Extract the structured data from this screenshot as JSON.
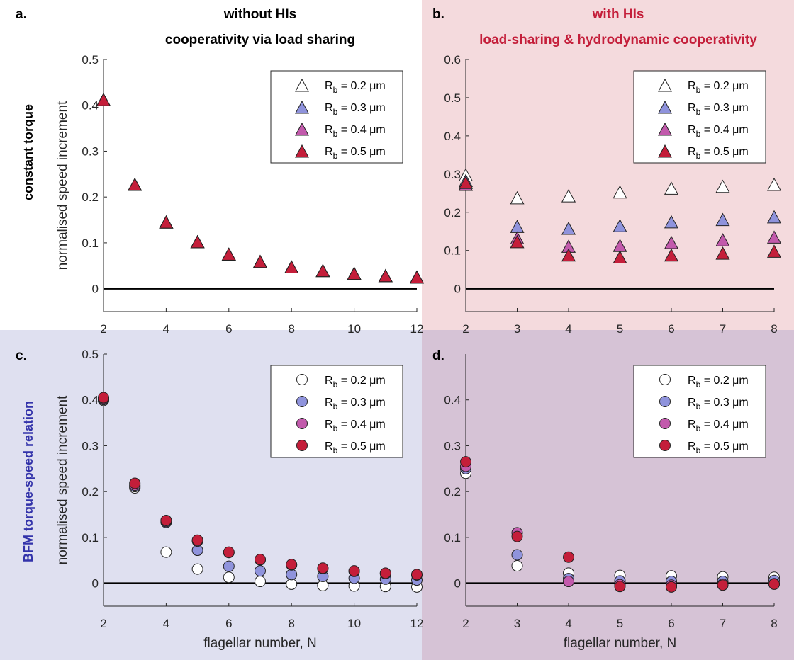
{
  "colors": {
    "bg_b": "#f4dadd",
    "bg_c": "#dfe0f0",
    "bg_d": "#d6c3d6",
    "series": [
      "#ffffff",
      "#8f93dc",
      "#c25aac",
      "#c41e3a"
    ],
    "title_red": "#c41e3a",
    "label_blue": "#3333aa"
  },
  "headers": {
    "col1_line1": "without HIs",
    "col1_line2": "cooperativity via load sharing",
    "col2_line1": "with HIs",
    "col2_line2": "load-sharing & hydrodynamic cooperativity",
    "row1": "constant torque",
    "row2": "BFM torque-speed relation"
  },
  "legend_prefix": "R",
  "legend_sub": "b",
  "chart_data": [
    {
      "panel": "a.",
      "type": "scatter",
      "marker": "triangle",
      "xlabel": "",
      "ylabel": "normalised speed increment",
      "xlim": [
        2,
        12
      ],
      "ylim": [
        -0.05,
        0.5
      ],
      "xticks": [
        2,
        4,
        6,
        8,
        10,
        12
      ],
      "yticks": [
        0,
        0.1,
        0.2,
        0.3,
        0.4,
        0.5
      ],
      "ytick_labels": [
        "0",
        "0.1",
        "0.2",
        "0.3",
        "0.4",
        "0.5"
      ],
      "zero_line": true,
      "legend_position": "top-right",
      "series": [
        {
          "name": " = 0.2 μm",
          "x": [
            2,
            3,
            4,
            5,
            6,
            7,
            8,
            9,
            10,
            11,
            12
          ],
          "y": [
            0.41,
            0.225,
            0.143,
            0.1,
            0.073,
            0.057,
            0.045,
            0.037,
            0.031,
            0.026,
            0.023
          ]
        },
        {
          "name": " = 0.3 μm",
          "x": [
            2,
            3,
            4,
            5,
            6,
            7,
            8,
            9,
            10,
            11,
            12
          ],
          "y": [
            0.41,
            0.225,
            0.143,
            0.1,
            0.073,
            0.057,
            0.045,
            0.037,
            0.031,
            0.026,
            0.023
          ]
        },
        {
          "name": " = 0.4 μm",
          "x": [
            2,
            3,
            4,
            5,
            6,
            7,
            8,
            9,
            10,
            11,
            12
          ],
          "y": [
            0.41,
            0.225,
            0.143,
            0.1,
            0.073,
            0.057,
            0.045,
            0.037,
            0.031,
            0.026,
            0.023
          ]
        },
        {
          "name": " = 0.5 μm",
          "x": [
            2,
            3,
            4,
            5,
            6,
            7,
            8,
            9,
            10,
            11,
            12
          ],
          "y": [
            0.41,
            0.225,
            0.143,
            0.1,
            0.073,
            0.057,
            0.045,
            0.037,
            0.031,
            0.026,
            0.023
          ]
        }
      ]
    },
    {
      "panel": "b.",
      "type": "scatter",
      "marker": "triangle",
      "xlabel": "",
      "ylabel": "",
      "xlim": [
        2,
        8
      ],
      "ylim": [
        -0.06,
        0.6
      ],
      "xticks": [
        2,
        3,
        4,
        5,
        6,
        7,
        8
      ],
      "yticks": [
        0,
        0.1,
        0.2,
        0.3,
        0.4,
        0.5,
        0.6
      ],
      "ytick_labels": [
        "0",
        "0.1",
        "0.2",
        "0.3",
        "0.4",
        "0.5",
        "0.6"
      ],
      "zero_line": true,
      "legend_position": "top-right",
      "series": [
        {
          "name": " = 0.2 μm",
          "x": [
            2,
            3,
            4,
            5,
            6,
            7,
            8
          ],
          "y": [
            0.295,
            0.235,
            0.24,
            0.25,
            0.26,
            0.265,
            0.27
          ]
        },
        {
          "name": " = 0.3 μm",
          "x": [
            2,
            3,
            4,
            5,
            6,
            7,
            8
          ],
          "y": [
            0.28,
            0.16,
            0.155,
            0.162,
            0.172,
            0.178,
            0.185
          ]
        },
        {
          "name": " = 0.4 μm",
          "x": [
            2,
            3,
            4,
            5,
            6,
            7,
            8
          ],
          "y": [
            0.27,
            0.13,
            0.108,
            0.11,
            0.118,
            0.125,
            0.132
          ]
        },
        {
          "name": " = 0.5 μm",
          "x": [
            2,
            3,
            4,
            5,
            6,
            7,
            8
          ],
          "y": [
            0.275,
            0.12,
            0.085,
            0.08,
            0.085,
            0.09,
            0.095
          ]
        }
      ]
    },
    {
      "panel": "c.",
      "type": "scatter",
      "marker": "circle",
      "xlabel": "flagellar number, N",
      "ylabel": "normalised speed increment",
      "xlim": [
        2,
        12
      ],
      "ylim": [
        -0.05,
        0.5
      ],
      "xticks": [
        2,
        4,
        6,
        8,
        10,
        12
      ],
      "yticks": [
        0,
        0.1,
        0.2,
        0.3,
        0.4,
        0.5
      ],
      "ytick_labels": [
        "0",
        "0.1",
        "0.2",
        "0.3",
        "0.4",
        "0.5"
      ],
      "zero_line": true,
      "legend_position": "top-right",
      "series": [
        {
          "name": " = 0.2 μm",
          "x": [
            2,
            3,
            4,
            5,
            6,
            7,
            8,
            9,
            10,
            11,
            12
          ],
          "y": [
            0.399,
            0.208,
            0.068,
            0.031,
            0.013,
            0.004,
            -0.002,
            -0.005,
            -0.006,
            -0.007,
            -0.008
          ]
        },
        {
          "name": " = 0.3 μm",
          "x": [
            2,
            3,
            4,
            5,
            6,
            7,
            8,
            9,
            10,
            11,
            12
          ],
          "y": [
            0.401,
            0.211,
            0.133,
            0.072,
            0.037,
            0.027,
            0.019,
            0.015,
            0.011,
            0.009,
            0.007
          ]
        },
        {
          "name": " = 0.4 μm",
          "x": [
            2,
            3,
            4,
            5,
            6,
            7,
            8,
            9,
            10,
            11,
            12
          ],
          "y": [
            0.403,
            0.214,
            0.135,
            0.092,
            0.067,
            0.051,
            0.04,
            0.032,
            0.026,
            0.021,
            0.018
          ]
        },
        {
          "name": " = 0.5 μm",
          "x": [
            2,
            3,
            4,
            5,
            6,
            7,
            8,
            9,
            10,
            11,
            12
          ],
          "y": [
            0.405,
            0.218,
            0.137,
            0.094,
            0.068,
            0.052,
            0.041,
            0.033,
            0.027,
            0.022,
            0.019
          ]
        }
      ]
    },
    {
      "panel": "d.",
      "type": "scatter",
      "marker": "circle",
      "xlabel": "flagellar number, N",
      "ylabel": "",
      "xlim": [
        2,
        8
      ],
      "ylim": [
        -0.05,
        0.5
      ],
      "xticks": [
        2,
        3,
        4,
        5,
        6,
        7,
        8
      ],
      "yticks": [
        0,
        0.1,
        0.2,
        0.3,
        0.4
      ],
      "ytick_labels": [
        "0",
        "0.1",
        "0.2",
        "0.3",
        "0.4"
      ],
      "zero_line": true,
      "legend_position": "top-right",
      "series": [
        {
          "name": " = 0.2 μm",
          "x": [
            2,
            3,
            4,
            5,
            6,
            7,
            8
          ],
          "y": [
            0.24,
            0.038,
            0.022,
            0.017,
            0.016,
            0.014,
            0.013
          ]
        },
        {
          "name": " = 0.3 μm",
          "x": [
            2,
            3,
            4,
            5,
            6,
            7,
            8
          ],
          "y": [
            0.25,
            0.062,
            0.01,
            0.005,
            0.004,
            0.004,
            0.006
          ]
        },
        {
          "name": " = 0.4 μm",
          "x": [
            2,
            3,
            4,
            5,
            6,
            7,
            8
          ],
          "y": [
            0.255,
            0.11,
            0.004,
            -0.003,
            -0.004,
            -0.002,
            -0.001
          ]
        },
        {
          "name": " = 0.5 μm",
          "x": [
            2,
            3,
            4,
            5,
            6,
            7,
            8
          ],
          "y": [
            0.265,
            0.102,
            0.057,
            -0.007,
            -0.008,
            -0.004,
            -0.002
          ]
        }
      ]
    }
  ]
}
